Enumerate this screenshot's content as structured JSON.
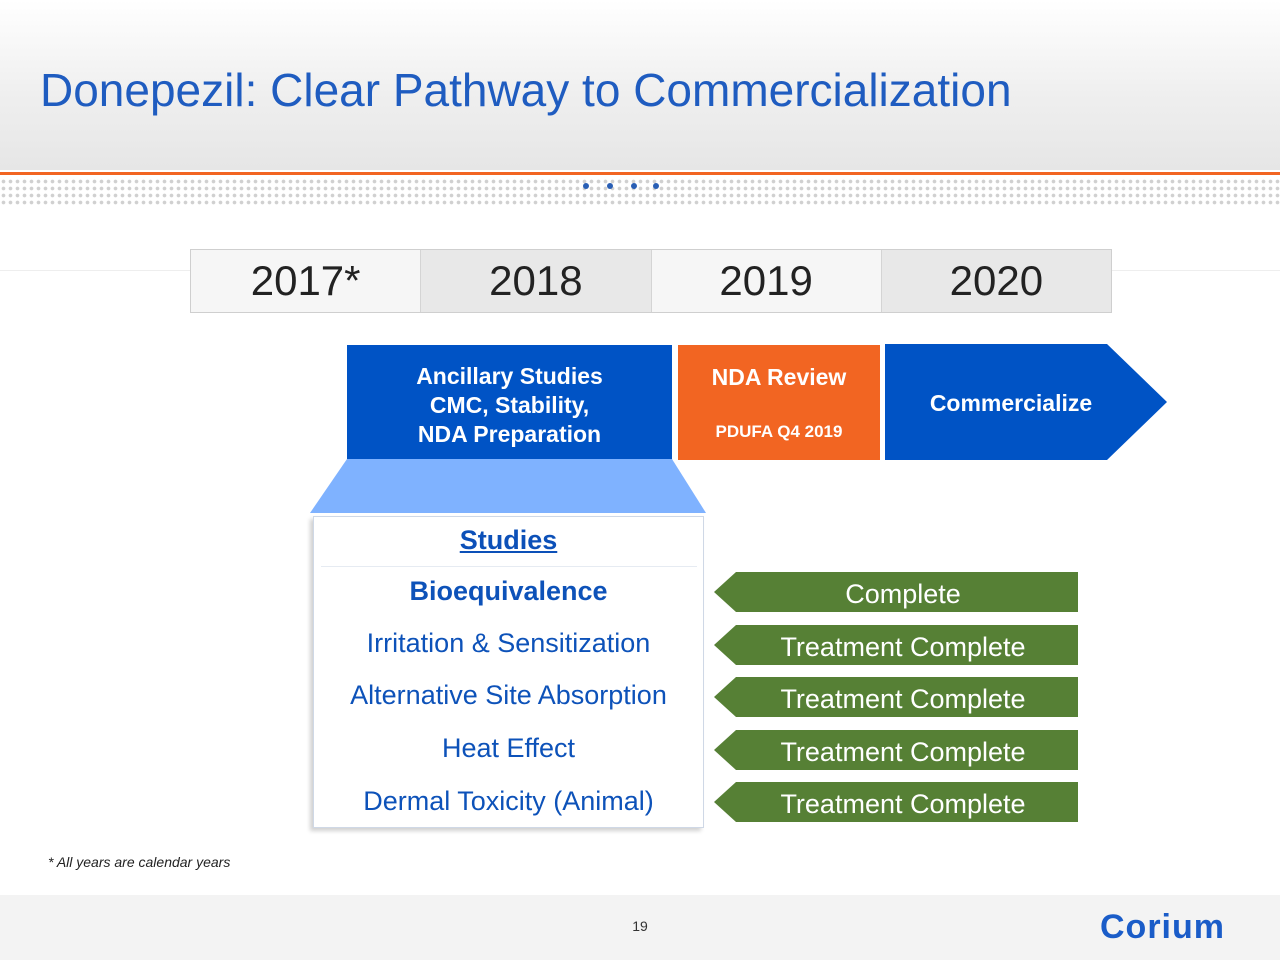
{
  "title": "Donepezil: Clear Pathway to Commercialization",
  "colors": {
    "title_blue": "#1f5cc0",
    "phase_blue": "#0053c5",
    "phase_orange": "#f26522",
    "status_green": "#568035",
    "funnel_light_blue": "#7fb2ff"
  },
  "years": [
    "2017*",
    "2018",
    "2019",
    "2020"
  ],
  "phases": {
    "ancillary": {
      "line1": "Ancillary Studies",
      "line2": "CMC, Stability,",
      "line3": "NDA Preparation"
    },
    "nda": {
      "line1": "NDA Review",
      "line2": "PDUFA Q4 2019"
    },
    "commercialize": {
      "label": "Commercialize"
    }
  },
  "studies": {
    "heading": "Studies",
    "rows": [
      {
        "name": "Bioequivalence",
        "status": "Complete"
      },
      {
        "name": "Irritation & Sensitization",
        "status": "Treatment Complete"
      },
      {
        "name": "Alternative Site Absorption",
        "status": "Treatment Complete"
      },
      {
        "name": "Heat Effect",
        "status": "Treatment Complete"
      },
      {
        "name": "Dermal Toxicity (Animal)",
        "status": "Treatment Complete"
      }
    ]
  },
  "footnote": "*   All years are calendar years",
  "page_number": "19",
  "logo_text": "Corium"
}
